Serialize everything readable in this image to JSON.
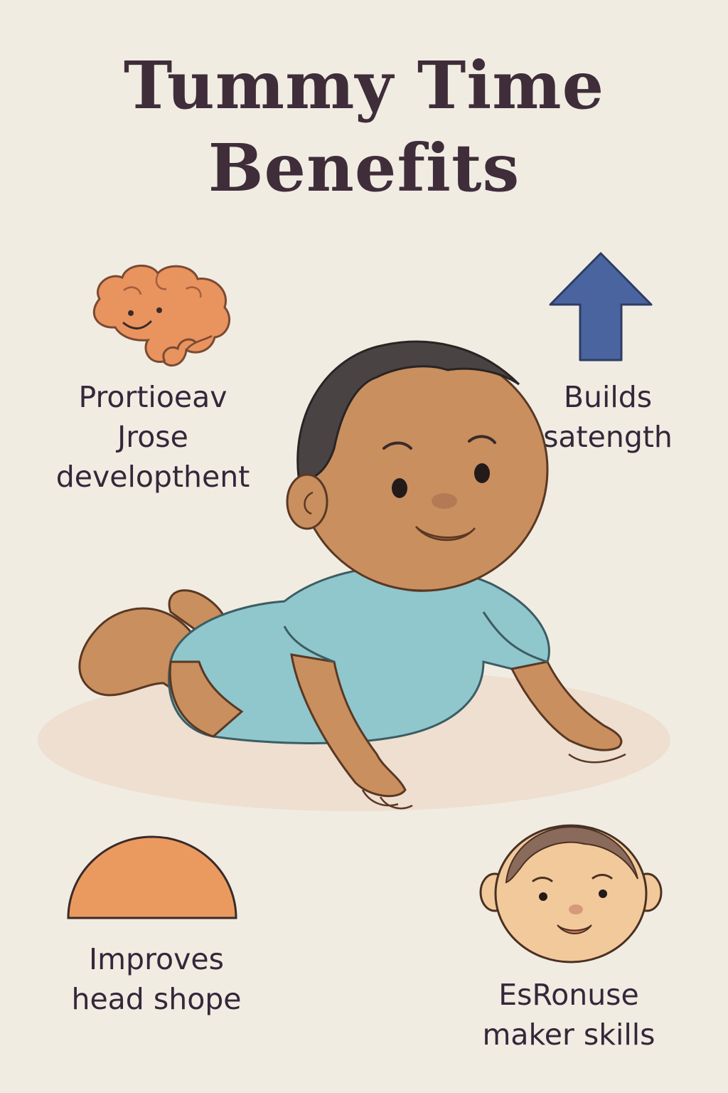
{
  "title": {
    "line1": "Tummy Time",
    "line2": "Benefits"
  },
  "benefits": [
    {
      "icon": "brain-icon",
      "lines": [
        "Prortioeav",
        "Jrose",
        "developthent"
      ]
    },
    {
      "icon": "up-arrow-icon",
      "lines": [
        "Builds",
        "satength"
      ]
    },
    {
      "icon": "half-circle-icon",
      "lines": [
        "Improves",
        "head shope"
      ]
    },
    {
      "icon": "baby-face-icon",
      "lines": [
        "EsRonuse",
        "maker skills"
      ]
    }
  ],
  "colors": {
    "background": "#f1ece2",
    "title": "#3f2d3a",
    "brain": "#e9935e",
    "arrow": "#4a649f",
    "half_circle": "#eb9a5f",
    "onesie": "#8fc7cc",
    "skin": "#c98f5e",
    "hair": "#4a4343",
    "mat": "#eedfd0"
  }
}
